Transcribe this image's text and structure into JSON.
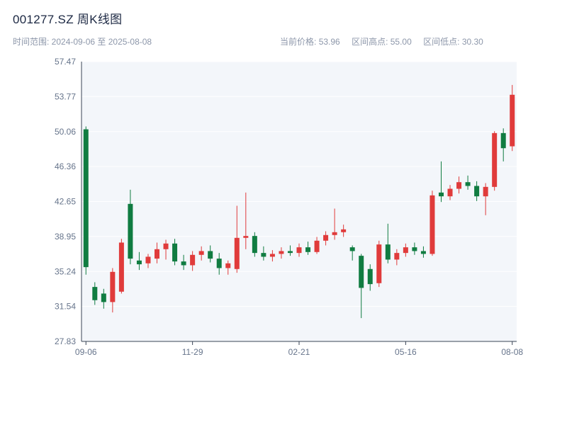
{
  "header": {
    "title": "001277.SZ 周K线图",
    "range_label": "时间范围: 2024-09-06 至 2025-08-08",
    "stats": [
      {
        "label": "当前价格:",
        "value": "53.96"
      },
      {
        "label": "区间高点:",
        "value": "55.00"
      },
      {
        "label": "区间低点:",
        "value": "30.30"
      }
    ]
  },
  "chart_data": {
    "type": "candlestick",
    "title": "001277.SZ 周K线图",
    "xlabel": "",
    "ylabel": "",
    "ylim": [
      27.83,
      57.47
    ],
    "y_ticks": [
      27.83,
      31.54,
      35.24,
      38.95,
      42.65,
      46.36,
      50.06,
      53.77,
      57.47
    ],
    "x_tick_labels": [
      "09-06",
      "11-29",
      "02-21",
      "05-16",
      "08-08"
    ],
    "x_tick_indices": [
      0,
      12,
      24,
      36,
      48
    ],
    "current_price": 53.96,
    "period_high": 55.0,
    "period_low": 30.3,
    "up_color": "#e03b3b",
    "down_color": "#107c41",
    "plot_bg": "#f3f6fa",
    "grid_color": "#ffffff",
    "axis_color": "#394455",
    "candles": [
      {
        "date": "2024-09-06",
        "o": 50.3,
        "h": 50.6,
        "l": 34.9,
        "c": 35.7
      },
      {
        "date": "2024-09-13",
        "o": 33.6,
        "h": 34.1,
        "l": 31.7,
        "c": 32.2
      },
      {
        "date": "2024-09-20",
        "o": 32.9,
        "h": 33.4,
        "l": 31.3,
        "c": 32.0
      },
      {
        "date": "2024-09-27",
        "o": 32.0,
        "h": 35.6,
        "l": 30.9,
        "c": 35.2
      },
      {
        "date": "2024-10-04",
        "o": 33.1,
        "h": 38.7,
        "l": 32.9,
        "c": 38.3
      },
      {
        "date": "2024-10-11",
        "o": 42.4,
        "h": 43.9,
        "l": 36.0,
        "c": 36.6
      },
      {
        "date": "2024-10-18",
        "o": 36.4,
        "h": 37.3,
        "l": 35.4,
        "c": 36.0
      },
      {
        "date": "2024-10-25",
        "o": 36.1,
        "h": 37.1,
        "l": 35.6,
        "c": 36.8
      },
      {
        "date": "2024-11-01",
        "o": 36.6,
        "h": 38.3,
        "l": 36.1,
        "c": 37.6
      },
      {
        "date": "2024-11-08",
        "o": 37.6,
        "h": 38.6,
        "l": 36.5,
        "c": 38.2
      },
      {
        "date": "2024-11-15",
        "o": 38.2,
        "h": 38.7,
        "l": 35.9,
        "c": 36.3
      },
      {
        "date": "2024-11-22",
        "o": 36.3,
        "h": 37.0,
        "l": 35.4,
        "c": 35.9
      },
      {
        "date": "2024-11-29",
        "o": 35.9,
        "h": 37.4,
        "l": 35.3,
        "c": 37.0
      },
      {
        "date": "2024-12-06",
        "o": 37.0,
        "h": 37.9,
        "l": 36.4,
        "c": 37.4
      },
      {
        "date": "2024-12-13",
        "o": 37.4,
        "h": 38.0,
        "l": 36.2,
        "c": 36.6
      },
      {
        "date": "2024-12-20",
        "o": 36.6,
        "h": 37.2,
        "l": 34.9,
        "c": 35.6
      },
      {
        "date": "2024-12-27",
        "o": 35.6,
        "h": 36.4,
        "l": 34.9,
        "c": 36.1
      },
      {
        "date": "2025-01-03",
        "o": 35.5,
        "h": 42.2,
        "l": 35.1,
        "c": 38.8
      },
      {
        "date": "2025-01-10",
        "o": 38.8,
        "h": 43.6,
        "l": 37.6,
        "c": 39.0
      },
      {
        "date": "2025-01-17",
        "o": 39.0,
        "h": 39.4,
        "l": 36.8,
        "c": 37.2
      },
      {
        "date": "2025-01-24",
        "o": 37.2,
        "h": 37.9,
        "l": 36.4,
        "c": 36.8
      },
      {
        "date": "2025-01-31",
        "o": 36.8,
        "h": 37.5,
        "l": 36.3,
        "c": 37.1
      },
      {
        "date": "2025-02-07",
        "o": 37.1,
        "h": 37.8,
        "l": 36.6,
        "c": 37.4
      },
      {
        "date": "2025-02-14",
        "o": 37.4,
        "h": 38.0,
        "l": 36.9,
        "c": 37.2
      },
      {
        "date": "2025-02-21",
        "o": 37.2,
        "h": 38.2,
        "l": 36.8,
        "c": 37.8
      },
      {
        "date": "2025-02-28",
        "o": 37.8,
        "h": 38.4,
        "l": 37.0,
        "c": 37.3
      },
      {
        "date": "2025-03-07",
        "o": 37.3,
        "h": 38.9,
        "l": 37.1,
        "c": 38.5
      },
      {
        "date": "2025-03-14",
        "o": 38.5,
        "h": 39.5,
        "l": 38.0,
        "c": 39.1
      },
      {
        "date": "2025-03-21",
        "o": 39.1,
        "h": 41.9,
        "l": 38.6,
        "c": 39.4
      },
      {
        "date": "2025-03-28",
        "o": 39.4,
        "h": 40.2,
        "l": 38.9,
        "c": 39.7
      },
      {
        "date": "2025-04-04",
        "o": 37.8,
        "h": 38.0,
        "l": 36.4,
        "c": 37.4
      },
      {
        "date": "2025-04-11",
        "o": 36.9,
        "h": 37.1,
        "l": 30.3,
        "c": 33.5
      },
      {
        "date": "2025-04-18",
        "o": 35.5,
        "h": 36.0,
        "l": 33.2,
        "c": 33.9
      },
      {
        "date": "2025-04-25",
        "o": 34.0,
        "h": 38.5,
        "l": 33.6,
        "c": 38.1
      },
      {
        "date": "2025-05-02",
        "o": 38.1,
        "h": 40.3,
        "l": 36.1,
        "c": 36.5
      },
      {
        "date": "2025-05-09",
        "o": 36.5,
        "h": 37.6,
        "l": 35.9,
        "c": 37.2
      },
      {
        "date": "2025-05-16",
        "o": 37.2,
        "h": 38.2,
        "l": 36.8,
        "c": 37.8
      },
      {
        "date": "2025-05-23",
        "o": 37.8,
        "h": 38.3,
        "l": 37.0,
        "c": 37.4
      },
      {
        "date": "2025-05-30",
        "o": 37.4,
        "h": 37.9,
        "l": 36.7,
        "c": 37.1
      },
      {
        "date": "2025-06-06",
        "o": 37.1,
        "h": 43.8,
        "l": 36.9,
        "c": 43.3
      },
      {
        "date": "2025-06-13",
        "o": 43.6,
        "h": 46.9,
        "l": 42.6,
        "c": 43.2
      },
      {
        "date": "2025-06-20",
        "o": 43.2,
        "h": 44.4,
        "l": 42.8,
        "c": 44.0
      },
      {
        "date": "2025-06-27",
        "o": 44.0,
        "h": 45.3,
        "l": 43.5,
        "c": 44.7
      },
      {
        "date": "2025-07-04",
        "o": 44.7,
        "h": 45.4,
        "l": 43.9,
        "c": 44.3
      },
      {
        "date": "2025-07-11",
        "o": 44.3,
        "h": 44.8,
        "l": 42.7,
        "c": 43.2
      },
      {
        "date": "2025-07-18",
        "o": 43.2,
        "h": 44.6,
        "l": 41.2,
        "c": 44.2
      },
      {
        "date": "2025-07-25",
        "o": 44.2,
        "h": 50.1,
        "l": 43.8,
        "c": 49.9
      },
      {
        "date": "2025-08-01",
        "o": 49.9,
        "h": 50.4,
        "l": 46.9,
        "c": 48.3
      },
      {
        "date": "2025-08-08",
        "o": 48.5,
        "h": 55.0,
        "l": 48.0,
        "c": 53.96
      }
    ]
  }
}
